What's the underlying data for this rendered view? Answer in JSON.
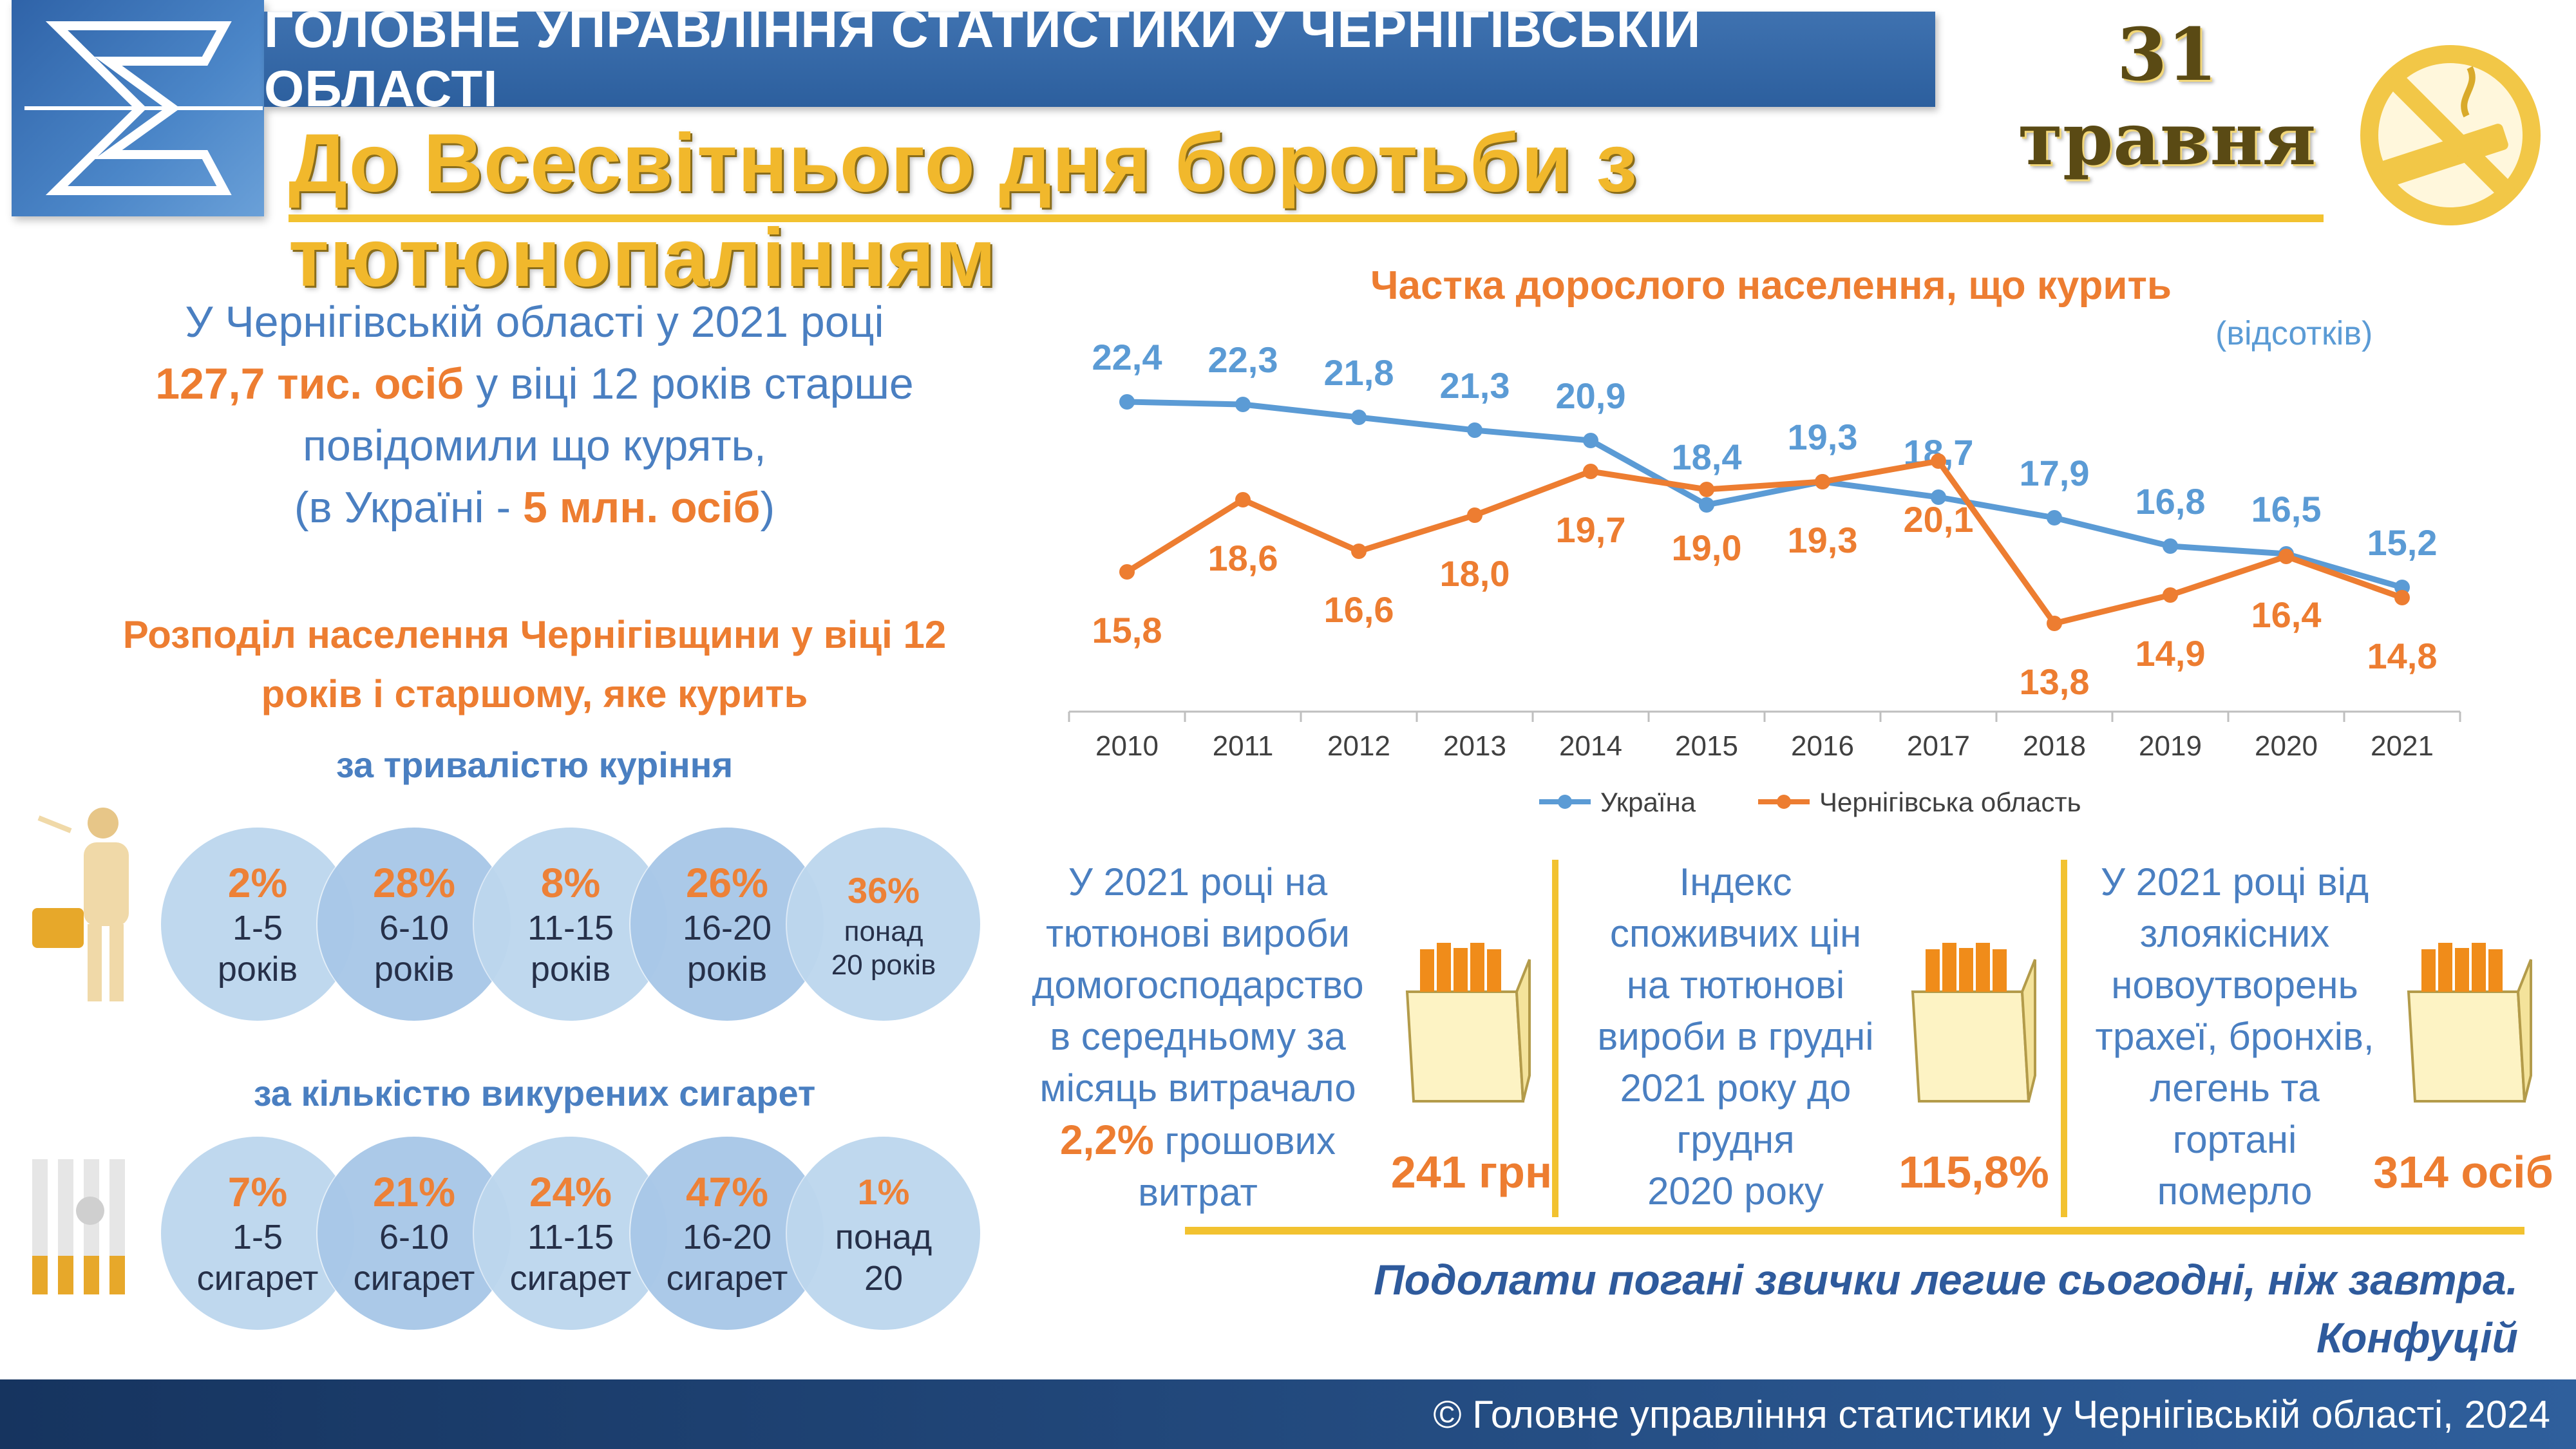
{
  "header": {
    "agency": "ГОЛОВНЕ УПРАВЛІННЯ СТАТИСТИКИ У ЧЕРНІГІВСЬКІЙ ОБЛАСТІ",
    "date": "31 травня",
    "headline": "До Всесвітнього дня боротьби з тютюнопалінням"
  },
  "intro": {
    "line1": "У Чернігівській області у 2021 році",
    "highlight": "127,7 тис. осіб",
    "line2_rest": "у віці 12 років старше",
    "line3": "повідомили що курять,",
    "ua_prefix": "(в Україні -",
    "ua_value": "5 млн. осіб",
    "ua_suffix": ")"
  },
  "distribution": {
    "title": "Розподіл населення Чернігівщини у віці 12 років і старшому, яке курить",
    "by_duration": {
      "title": "за тривалістю куріння",
      "items": [
        {
          "pct": "2%",
          "label1": "1-5",
          "label2": "років"
        },
        {
          "pct": "28%",
          "label1": "6-10",
          "label2": "років"
        },
        {
          "pct": "8%",
          "label1": "11-15",
          "label2": "років"
        },
        {
          "pct": "26%",
          "label1": "16-20",
          "label2": "років"
        },
        {
          "pct": "36%",
          "label1": "понад",
          "label2": "20 років"
        }
      ]
    },
    "by_count": {
      "title": "за кількістю викурених сигарет",
      "items": [
        {
          "pct": "7%",
          "label1": "1-5",
          "label2": "сигарет"
        },
        {
          "pct": "21%",
          "label1": "6-10",
          "label2": "сигарет"
        },
        {
          "pct": "24%",
          "label1": "11-15",
          "label2": "сигарет"
        },
        {
          "pct": "47%",
          "label1": "16-20",
          "label2": "сигарет"
        },
        {
          "pct": "1%",
          "label1": "понад",
          "label2": "20"
        }
      ]
    }
  },
  "chart_data": {
    "type": "line",
    "title": "Частка дорослого населення, що курить",
    "units": "(відсотків)",
    "x": [
      "2010",
      "2011",
      "2012",
      "2013",
      "2014",
      "2015",
      "2016",
      "2017",
      "2018",
      "2019",
      "2020",
      "2021"
    ],
    "series": [
      {
        "name": "Україна",
        "color": "#5b9bd5",
        "values": [
          22.4,
          22.3,
          21.8,
          21.3,
          20.9,
          18.4,
          19.3,
          18.7,
          17.9,
          16.8,
          16.5,
          15.2
        ],
        "labels": [
          "22,4",
          "22,3",
          "21,8",
          "21,3",
          "20,9",
          "18,4",
          "19,3",
          "18,7",
          "17,9",
          "16,8",
          "16,5",
          "15,2"
        ]
      },
      {
        "name": "Чернігівська область",
        "color": "#ed7d31",
        "values": [
          15.8,
          18.6,
          16.6,
          18.0,
          19.7,
          19.0,
          19.3,
          20.1,
          13.8,
          14.9,
          16.4,
          14.8
        ],
        "labels": [
          "15,8",
          "18,6",
          "16,6",
          "18,0",
          "19,7",
          "19,0",
          "19,3",
          "20,1",
          "13,8",
          "14,9",
          "16,4",
          "14,8"
        ]
      }
    ],
    "ylim": [
      12,
      26
    ],
    "legend": "bottom"
  },
  "facts": [
    {
      "text": [
        "У 2021 році на",
        "тютюнові вироби",
        "домогосподарство",
        "в середньому за",
        "місяць витрачало"
      ],
      "em": "2,2%",
      "em_rest": "грошових",
      "last": "витрат",
      "value": "241 грн"
    },
    {
      "text": [
        "Індекс",
        "споживчих цін",
        "на тютюнові",
        "вироби в грудні",
        "2021 року до",
        "грудня",
        "2020 року"
      ],
      "value": "115,8%"
    },
    {
      "text": [
        "У 2021 році  від",
        "злоякісних",
        "новоутворень",
        "трахеї, бронхів,",
        "легень та",
        "гортані",
        "померло"
      ],
      "value": "314 осіб"
    }
  ],
  "quote": {
    "text": "Подолати погані звички легше сьогодні, ніж завтра.",
    "author": "Конфуцій"
  },
  "footer": "© Головне управління статистики у Чернігівській області, 2024",
  "colors": {
    "blue": "#5b9bd5",
    "orange": "#ed7d31",
    "gold": "#f2c230",
    "navy": "#2c5f9e"
  }
}
